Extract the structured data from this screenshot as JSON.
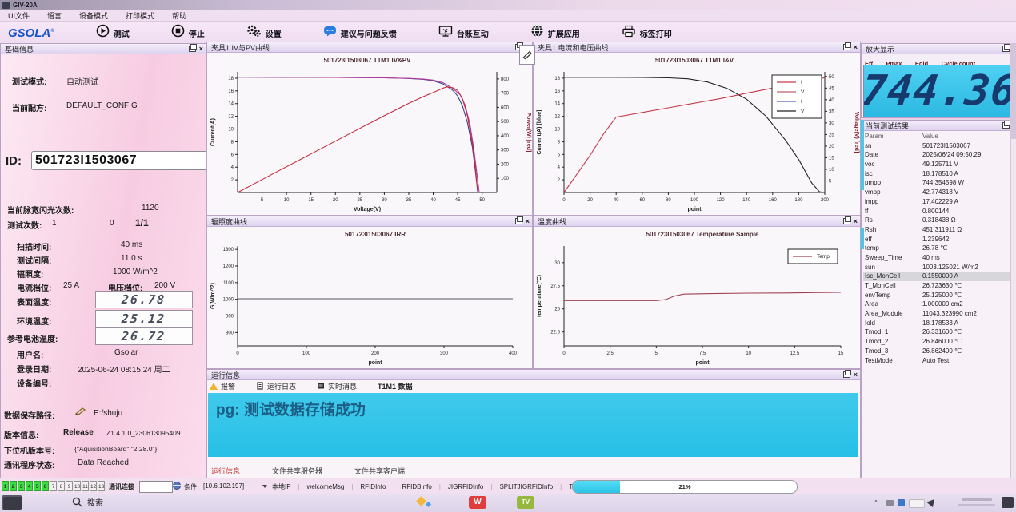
{
  "window": {
    "title": "GIV-20A"
  },
  "menu": {
    "items": [
      "UI文件",
      "语言",
      "设备模式",
      "打印模式",
      "帮助"
    ]
  },
  "toolbar": {
    "logo": "GSOLA",
    "buttons": [
      {
        "label": "测试",
        "icon": "play-icon"
      },
      {
        "label": "停止",
        "icon": "stop-icon"
      },
      {
        "label": "设置",
        "icon": "gears-icon"
      },
      {
        "label": "建议与问题反馈",
        "icon": "chat-icon"
      },
      {
        "label": "台账互动",
        "icon": "monitor-icon"
      },
      {
        "label": "扩展应用",
        "icon": "globe-icon"
      },
      {
        "label": "标签打印",
        "icon": "printer-icon"
      }
    ]
  },
  "left_panel": {
    "title": "基础信息",
    "test_mode_label": "测试模式:",
    "test_mode": "自动测试",
    "recipe_label": "当前配方:",
    "recipe": "DEFAULT_CONFIG",
    "id_label": "ID:",
    "id_value": "501723I1503067",
    "flash_label": "当前脉宽闪光次数:",
    "flash_count": "1120",
    "test_count_label": "测试次数:",
    "test_count_a": "1",
    "test_count_b": "0",
    "test_count_frac": "1/1",
    "sweep_label": "扫描时间:",
    "sweep": "40 ms",
    "interval_label": "测试间隔:",
    "interval": "11.0 s",
    "irr_label": "辐照度:",
    "irr": "1000 W/m^2",
    "current_range_label": "电流档位:",
    "current_range": "25 A",
    "voltage_range_label": "电压档位:",
    "voltage_range": "200 V",
    "surface_temp_label": "表面温度:",
    "surface_temp": "26.78",
    "ambient_temp_label": "环境温度:",
    "ambient_temp": "25.12",
    "ref_cell_temp_label": "参考电池温度:",
    "ref_cell_temp": "26.72",
    "user_label": "用户名:",
    "user": "Gsolar",
    "login_label": "登录日期:",
    "login": "2025-06-24 08:15:24 周二",
    "device_no_label": "设备编号:",
    "device_no": "",
    "path_label": "数据保存路径:",
    "path": "E:/shuju",
    "version_label": "版本信息:",
    "version_type": "Release",
    "version": "Z1.4.1.0_230613095409",
    "fw_label": "下位机版本号:",
    "fw": "{\"AquisitionBoard\":\"2.28.0\"}",
    "comm_label": "通讯程序状态:",
    "comm": "Data Reached"
  },
  "panels": {
    "ivpv": {
      "title": "夹具1 IV与PV曲线"
    },
    "iv_point": {
      "title": "夹具1 电流和电压曲线"
    },
    "irr": {
      "title": "辐照度曲线"
    },
    "temp": {
      "title": "温度曲线"
    },
    "runinfo": {
      "title": "运行信息"
    },
    "zoom": {
      "title": "放大显示"
    },
    "result": {
      "title": "当前测试结果"
    }
  },
  "runinfo": {
    "tabs": [
      {
        "label": "报警",
        "icon": "warning-icon"
      },
      {
        "label": "运行日志",
        "icon": "log-icon"
      },
      {
        "label": "实时消息",
        "icon": "message-icon"
      },
      {
        "label": "T1M1 数据",
        "icon": ""
      }
    ],
    "message": "pg: 测试数据存储成功",
    "bottom_tabs": [
      "运行信息",
      "文件共享服务器",
      "文件共享客户端"
    ]
  },
  "zoom_display": {
    "tabs": [
      "Eff",
      "Pmax",
      "Eold",
      "Cycle count"
    ],
    "value": "744.36"
  },
  "result_table": {
    "headers": [
      "Param",
      "Value"
    ],
    "selected_row": 14,
    "rows": [
      [
        "sn",
        "501723I1503067"
      ],
      [
        "Date",
        "2025/06/24 09:50:29"
      ],
      [
        "voc",
        "49.125711 V"
      ],
      [
        "isc",
        "18.178510 A"
      ],
      [
        "pmpp",
        "744.354598 W"
      ],
      [
        "vmpp",
        "42.774318 V"
      ],
      [
        "impp",
        "17.402229 A"
      ],
      [
        "ff",
        "0.800144"
      ],
      [
        "Rs",
        "0.318438 Ω"
      ],
      [
        "Rsh",
        "451.311911 Ω"
      ],
      [
        "eff",
        "1.239642"
      ],
      [
        "temp",
        "26.78 ℃"
      ],
      [
        "Sweep_Time",
        "40 ms"
      ],
      [
        "sun",
        "1003.125021 W/m2"
      ],
      [
        "Isc_MonCell",
        "0.1550000 A"
      ],
      [
        "T_MonCell",
        "26.723630 ℃"
      ],
      [
        "envTemp",
        "25.125000 ℃"
      ],
      [
        "Area",
        "1.000000 cm2"
      ],
      [
        "Area_Module",
        "11043.323990 cm2"
      ],
      [
        "Iold",
        "18.178533 A"
      ],
      [
        "Tmod_1",
        "26.331600 ℃"
      ],
      [
        "Tmod_2",
        "26.846000 ℃"
      ],
      [
        "Tmod_3",
        "26.862400 ℃"
      ],
      [
        "TestMode",
        "Auto Test"
      ]
    ]
  },
  "status_bar": {
    "channels": [
      "1",
      "2",
      "3",
      "4",
      "5",
      "6",
      "7",
      "8",
      "9",
      "10",
      "11",
      "12",
      "13"
    ],
    "channels_active": 6,
    "comm_label": "通讯连接",
    "globe_label": "条件",
    "ip": "[10.6.102.197]",
    "items": [
      "本地IP",
      "welcomeMsg",
      "RFIDInfo",
      "RFIDBInfo",
      "JIGRFIDInfo",
      "SPLITJIGRFIDInfo",
      "TMODInfo"
    ],
    "progress": "21%",
    "progress_pct": 21
  },
  "taskbar": {
    "search": "搜索",
    "wps": "W",
    "tv": "TV"
  },
  "colors": {
    "accent_cyan": "#2cc4e8",
    "display_navy": "#173a6e",
    "panel_pink": "#f7cce2",
    "active_green": "#3ddb42",
    "alert_red": "#c22a2a"
  },
  "chart_data": [
    {
      "key": "ivpv",
      "type": "line",
      "title": "501723I1503067 T1M1 IV&PV",
      "xlabel": "Voltage(V)",
      "ylabel": "Current(A)",
      "ylabel_right": "Power(W) [red]",
      "xlim": [
        0,
        53
      ],
      "xticks": [
        5,
        10,
        15,
        20,
        25,
        30,
        35,
        40,
        45,
        50
      ],
      "ylim": [
        0,
        19
      ],
      "yticks": [
        2,
        4,
        6,
        8,
        10,
        12,
        14,
        16,
        18
      ],
      "ylim_right": [
        0,
        850
      ],
      "yticks_right": [
        100,
        200,
        300,
        400,
        500,
        600,
        700,
        800
      ],
      "grid": false,
      "legend": null,
      "series": [
        {
          "name": "IV",
          "axis": "left",
          "color": "#39408f",
          "x": [
            0,
            5,
            10,
            15,
            20,
            25,
            30,
            35,
            38,
            40,
            42,
            44,
            45,
            46,
            47,
            48,
            48.6,
            49.1
          ],
          "y": [
            18.17,
            18.16,
            18.15,
            18.14,
            18.12,
            18.1,
            18.05,
            17.95,
            17.8,
            17.6,
            17.1,
            16.1,
            15.2,
            13.6,
            11.0,
            7.2,
            3.5,
            0
          ]
        },
        {
          "name": "IV2",
          "axis": "left",
          "color": "#b23898",
          "x": [
            0,
            5,
            10,
            15,
            20,
            25,
            30,
            35,
            38,
            40,
            42,
            44,
            45.5,
            46.5,
            47.5,
            48.3,
            48.9,
            49.4
          ],
          "y": [
            18.17,
            18.16,
            18.15,
            18.14,
            18.12,
            18.1,
            18.06,
            17.97,
            17.85,
            17.7,
            17.3,
            16.4,
            15.4,
            13.8,
            10.8,
            6.8,
            3.2,
            0
          ]
        },
        {
          "name": "PV",
          "axis": "right",
          "color": "#c22a3a",
          "x": [
            0,
            5,
            10,
            15,
            20,
            25,
            30,
            35,
            38,
            40,
            42,
            42.8,
            44,
            45,
            46,
            47,
            48,
            48.6,
            49.1
          ],
          "y": [
            0,
            91,
            182,
            272,
            362,
            452,
            541,
            628,
            676,
            704,
            735,
            744,
            738,
            720,
            660,
            540,
            350,
            180,
            0
          ]
        }
      ]
    },
    {
      "key": "iv_point",
      "type": "line",
      "title": "501723I1503067 T1M1 I&V",
      "xlabel": "point",
      "ylabel": "Current(A) [blue]",
      "ylabel_right": "Voltage(V) [red]",
      "xlim": [
        0,
        200
      ],
      "xticks": [
        0,
        20,
        40,
        60,
        80,
        100,
        120,
        140,
        160,
        180,
        200
      ],
      "ylim": [
        0,
        19
      ],
      "yticks": [
        2,
        4,
        6,
        8,
        10,
        12,
        14,
        16,
        18
      ],
      "ylim_right": [
        0,
        52
      ],
      "yticks_right": [
        5,
        10,
        15,
        20,
        25,
        30,
        35,
        40,
        45,
        50
      ],
      "grid": false,
      "legend": {
        "pos": "top-right",
        "entries": [
          {
            "label": "I",
            "color": "#c23a4a"
          },
          {
            "label": "V",
            "color": "#c06070"
          },
          {
            "label": "I",
            "color": "#5060b0"
          },
          {
            "label": "V",
            "color": "#222222"
          }
        ]
      },
      "series": [
        {
          "name": "V",
          "axis": "right",
          "color": "#c23a4a",
          "x": [
            0,
            10,
            20,
            30,
            40,
            60,
            80,
            100,
            120,
            140,
            160,
            180,
            200
          ],
          "y": [
            0,
            8,
            16,
            25,
            32.5,
            34.5,
            36.5,
            38.5,
            40.5,
            42.8,
            45,
            47.3,
            49.5
          ]
        },
        {
          "name": "I",
          "axis": "left",
          "color": "#222222",
          "x": [
            0,
            20,
            40,
            60,
            80,
            95,
            110,
            125,
            140,
            155,
            170,
            180,
            190,
            196,
            200
          ],
          "y": [
            18.15,
            18.15,
            18.14,
            18.12,
            18.05,
            17.9,
            17.4,
            16.4,
            14.7,
            12.0,
            8.2,
            5.2,
            1.5,
            0.1,
            0
          ]
        }
      ]
    },
    {
      "key": "irr",
      "type": "line",
      "title": "501723I1503067 IRR",
      "xlabel": "point",
      "ylabel": "G(W/m^2)",
      "xlim": [
        0,
        400
      ],
      "xticks": [
        0,
        100,
        200,
        300,
        400
      ],
      "ylim": [
        720,
        1320
      ],
      "yticks": [
        800,
        900,
        1000,
        1100,
        1200,
        1300
      ],
      "grid": false,
      "legend": null,
      "series": [
        {
          "name": "G",
          "axis": "left",
          "color": "#55555f",
          "x": [
            0,
            400
          ],
          "y": [
            1003,
            1003
          ]
        }
      ]
    },
    {
      "key": "temp",
      "type": "line",
      "title": "501723I1503067 Temperature Sample",
      "xlabel": "point",
      "ylabel": "temperature(℃)",
      "xlim": [
        0,
        15
      ],
      "xticks": [
        0,
        2.5,
        5,
        7.5,
        10,
        12.5,
        15
      ],
      "ylim": [
        21,
        31.8
      ],
      "yticks": [
        22.5,
        25,
        27.5,
        30
      ],
      "grid": false,
      "legend": {
        "pos": "top-right",
        "entries": [
          {
            "label": "Temp",
            "color": "#a04050"
          }
        ]
      },
      "series": [
        {
          "name": "Temp",
          "axis": "left",
          "color": "#a04050",
          "x": [
            0,
            1,
            2,
            3,
            4,
            5,
            5.5,
            6,
            6.5,
            8,
            10,
            12,
            15
          ],
          "y": [
            25.9,
            25.9,
            25.9,
            25.9,
            25.9,
            25.9,
            26.0,
            26.4,
            26.6,
            26.65,
            26.7,
            26.72,
            26.8
          ]
        }
      ]
    }
  ]
}
